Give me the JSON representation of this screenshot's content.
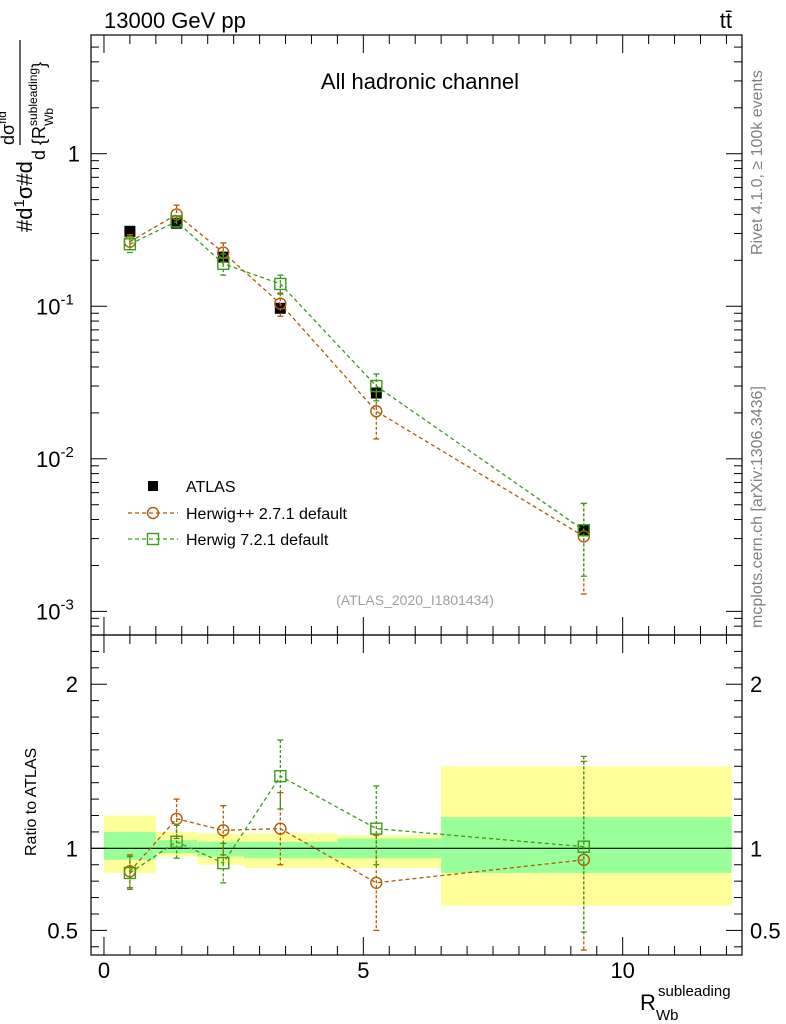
{
  "header": {
    "left": "13000 GeV pp",
    "right": "tt̄",
    "watermark": "(ATLAS_2020_I1801434)",
    "side_rivet": "Rivet 4.1.0, ≥ 100k events",
    "side_mcplots": "mcplots.cern.ch [arXiv:1306.3436]"
  },
  "chart_data": [
    {
      "type": "scatter",
      "panel": "main",
      "title": "All hadronic channel",
      "yscale": "log",
      "ylim": [
        0.0007,
        6
      ],
      "xlim": [
        -0.25,
        12.3
      ],
      "ylabel": "#d1/σ#d dσ^fid / d {R_Wb^subleading}",
      "y_tick_labels": [
        "10^-3",
        "10^-2",
        "10^-1",
        "1"
      ],
      "bins": [
        [
          0,
          1
        ],
        [
          1,
          1.8
        ],
        [
          1.8,
          2.7
        ],
        [
          2.7,
          4.5
        ],
        [
          4.5,
          6.5
        ],
        [
          6.5,
          12.1
        ]
      ],
      "x": [
        0.5,
        1.4,
        2.3,
        3.4,
        5.25,
        9.25
      ],
      "series": [
        {
          "name": "ATLAS",
          "color": "#000000",
          "marker": "filled-square",
          "values": [
            0.31,
            0.35,
            0.21,
            0.097,
            0.027,
            0.0034
          ]
        },
        {
          "name": "Herwig++ 2.7.1 default",
          "color": "#b35a00",
          "marker": "open-circle",
          "line": "dashed",
          "values": [
            0.265,
            0.4,
            0.225,
            0.104,
            0.0205,
            0.0031
          ],
          "err_lo": [
            0.03,
            0.03,
            0.03,
            0.018,
            0.007,
            0.0018
          ],
          "err_hi": [
            0.03,
            0.06,
            0.035,
            0.018,
            0.007,
            0.002
          ]
        },
        {
          "name": "Herwig 7.2.1 default",
          "color": "#3a9c1a",
          "marker": "open-square",
          "line": "dashed",
          "values": [
            0.255,
            0.36,
            0.19,
            0.14,
            0.03,
            0.0034
          ],
          "err_lo": [
            0.03,
            0.03,
            0.03,
            0.02,
            0.006,
            0.0017
          ],
          "err_hi": [
            0.03,
            0.03,
            0.03,
            0.02,
            0.006,
            0.0017
          ]
        }
      ]
    },
    {
      "type": "scatter",
      "panel": "ratio",
      "ylim": [
        0.35,
        2.3
      ],
      "xlim": [
        -0.25,
        12.3
      ],
      "ylabel": "Ratio to ATLAS",
      "xlabel": "R_Wb^subleading",
      "x_ticks": [
        0,
        5,
        10
      ],
      "y_ticks": [
        0.5,
        1,
        2
      ],
      "bins": [
        [
          0,
          1
        ],
        [
          1,
          1.8
        ],
        [
          1.8,
          2.7
        ],
        [
          2.7,
          4.5
        ],
        [
          4.5,
          6.5
        ],
        [
          6.5,
          12.1
        ]
      ],
      "band_outer": {
        "color": "#ffff99",
        "lo": [
          0.85,
          0.95,
          0.9,
          0.88,
          0.88,
          0.65
        ],
        "hi": [
          1.2,
          1.1,
          1.09,
          1.09,
          1.08,
          1.5
        ]
      },
      "band_inner": {
        "color": "#99ff99",
        "lo": [
          0.93,
          0.97,
          0.95,
          0.94,
          0.94,
          0.85
        ],
        "hi": [
          1.1,
          1.05,
          1.04,
          1.04,
          1.06,
          1.19
        ]
      },
      "x": [
        0.5,
        1.4,
        2.3,
        3.4,
        5.25,
        9.25
      ],
      "series": [
        {
          "name": "Herwig++ 2.7.1 default",
          "color": "#b35a00",
          "marker": "open-circle",
          "values": [
            0.86,
            1.18,
            1.11,
            1.12,
            0.79,
            0.93
          ],
          "err_lo": [
            0.1,
            0.12,
            0.15,
            0.22,
            0.29,
            0.55
          ],
          "err_hi": [
            0.1,
            0.12,
            0.15,
            0.22,
            0.29,
            0.6
          ]
        },
        {
          "name": "Herwig 7.2.1 default",
          "color": "#3a9c1a",
          "marker": "open-square",
          "values": [
            0.85,
            1.04,
            0.91,
            1.44,
            1.12,
            1.01
          ],
          "err_lo": [
            0.1,
            0.1,
            0.12,
            0.2,
            0.22,
            0.52
          ],
          "err_hi": [
            0.1,
            0.1,
            0.12,
            0.22,
            0.26,
            0.55
          ]
        }
      ]
    }
  ]
}
